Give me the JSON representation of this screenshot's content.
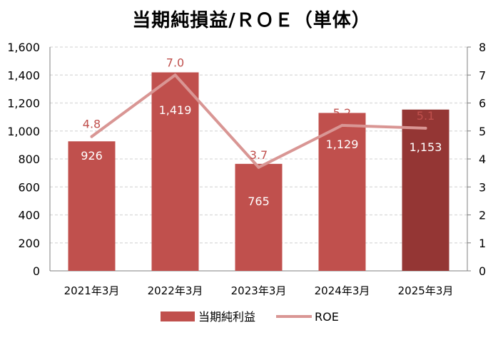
{
  "chart_data": {
    "type": "bar",
    "title": "当期純損益/ＲＯＥ（単体）",
    "categories": [
      "2021年3月",
      "2022年3月",
      "2023年3月",
      "2024年3月",
      "2025年3月"
    ],
    "series": [
      {
        "name": "当期純利益",
        "type": "bar",
        "axis": "left",
        "values": [
          926,
          1419,
          765,
          1129,
          1153
        ],
        "labels": [
          "926",
          "1,419",
          "765",
          "1,129",
          "1,153"
        ],
        "colors": [
          "#c0504d",
          "#c0504d",
          "#c0504d",
          "#c0504d",
          "#943634"
        ]
      },
      {
        "name": "ROE",
        "type": "line",
        "axis": "right",
        "values": [
          4.8,
          7.0,
          3.7,
          5.2,
          5.1
        ],
        "labels": [
          "4.8",
          "7.0",
          "3.7",
          "5.2",
          "5.1"
        ],
        "color": "#d99694"
      }
    ],
    "ylim_left": [
      0,
      1600
    ],
    "yticks_left": [
      "0",
      "200",
      "400",
      "600",
      "800",
      "1,000",
      "1,200",
      "1,400",
      "1,600"
    ],
    "ylim_right": [
      0,
      8
    ],
    "yticks_right": [
      "0",
      "1",
      "2",
      "3",
      "4",
      "5",
      "6",
      "7",
      "8"
    ],
    "grid": true,
    "legend_position": "bottom"
  }
}
